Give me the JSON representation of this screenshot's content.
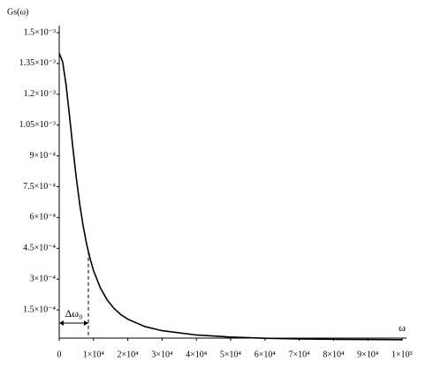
{
  "chart_data": {
    "type": "line",
    "y_label": "Gs(ω)",
    "x_label": "ω",
    "x": [
      0,
      1000,
      2000,
      3000,
      4000,
      5000,
      6000,
      7000,
      8000,
      9000,
      10000,
      12000,
      14000,
      16000,
      18000,
      20000,
      25000,
      30000,
      40000,
      50000,
      60000,
      70000,
      80000,
      90000,
      100000
    ],
    "series": [
      {
        "color": "#000000",
        "values": [
          0.0014,
          0.001358,
          0.001246,
          0.0010955,
          0.000937,
          0.00079,
          0.000663,
          0.000557,
          0.00047,
          0.0004,
          0.000342,
          0.000257,
          0.000198,
          0.000157,
          0.000127,
          0.000105,
          6.9e-05,
          4.9e-05,
          2.8e-05,
          1.8e-05,
          1.2e-05,
          9e-06,
          7e-06,
          6e-06,
          5e-06
        ]
      }
    ],
    "xlim": [
      0,
      100000
    ],
    "ylim": [
      0,
      0.0015
    ],
    "xticks": [
      0,
      {
        "value": 10000,
        "label": "1×10⁴"
      },
      {
        "value": 20000,
        "label": "2×10⁴"
      },
      {
        "value": 30000,
        "label": "3×10⁴"
      },
      {
        "value": 40000,
        "label": "4×10⁴"
      },
      {
        "value": 50000,
        "label": "5×10⁴"
      },
      {
        "value": 60000,
        "label": "6×10⁴"
      },
      {
        "value": 70000,
        "label": "7×10⁴"
      },
      {
        "value": 80000,
        "label": "8×10⁴"
      },
      {
        "value": 90000,
        "label": "9×10⁴"
      },
      {
        "value": 100000,
        "label": "1×10⁵"
      }
    ],
    "yticks": [
      {
        "value": 0.00015,
        "label": "1.5×10⁻⁴"
      },
      {
        "value": 0.0003,
        "label": "3×10⁻⁴"
      },
      {
        "value": 0.00045,
        "label": "4.5×10⁻⁴"
      },
      {
        "value": 0.0006,
        "label": "6×10⁻⁴"
      },
      {
        "value": 0.00075,
        "label": "7.5×10⁻⁴"
      },
      {
        "value": 0.0009,
        "label": "9×10⁻⁴"
      },
      {
        "value": 0.00105,
        "label": "1.05×10⁻³"
      },
      {
        "value": 0.0012,
        "label": "1.2×10⁻³"
      },
      {
        "value": 0.00135,
        "label": "1.35×10⁻³"
      },
      {
        "value": 0.0015,
        "label": "1.5×10⁻³"
      }
    ],
    "annotation": {
      "text": "Δω₀",
      "x": 8500,
      "color": "#3344aa"
    }
  }
}
